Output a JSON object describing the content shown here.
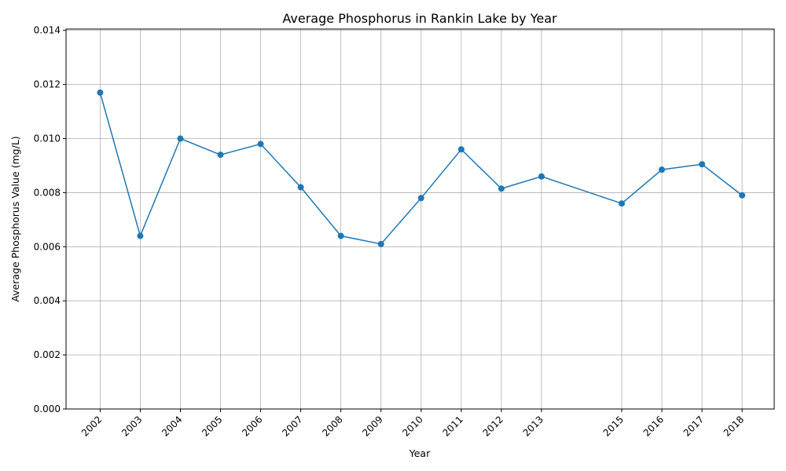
{
  "chart_data": {
    "type": "line",
    "title": "Average Phosphorus in Rankin Lake by Year",
    "xlabel": "Year",
    "ylabel": "Average Phosphorus Value (mg/L)",
    "x": [
      2002,
      2003,
      2004,
      2005,
      2006,
      2007,
      2008,
      2009,
      2010,
      2011,
      2012,
      2013,
      2015,
      2016,
      2017,
      2018
    ],
    "x_tick_labels": [
      "2002",
      "2003",
      "2004",
      "2005",
      "2006",
      "2007",
      "2008",
      "2009",
      "2010",
      "2011",
      "2012",
      "2013",
      "2015",
      "2016",
      "2017",
      "2018"
    ],
    "series": [
      {
        "values": [
          0.0117,
          0.0064,
          0.01,
          0.0094,
          0.0098,
          0.0082,
          0.0064,
          0.0061,
          0.0078,
          0.0096,
          0.00815,
          0.0086,
          0.0076,
          0.00885,
          0.00905,
          0.0079
        ],
        "color": "#1f77b4",
        "marker": "circle"
      }
    ],
    "y_ticks": [
      "0.000",
      "0.002",
      "0.004",
      "0.006",
      "0.008",
      "0.010",
      "0.012",
      "0.014"
    ],
    "xlim": [
      2001.15,
      2018.8
    ],
    "ylim": [
      0,
      0.01405
    ],
    "grid": true,
    "legend": "none"
  }
}
